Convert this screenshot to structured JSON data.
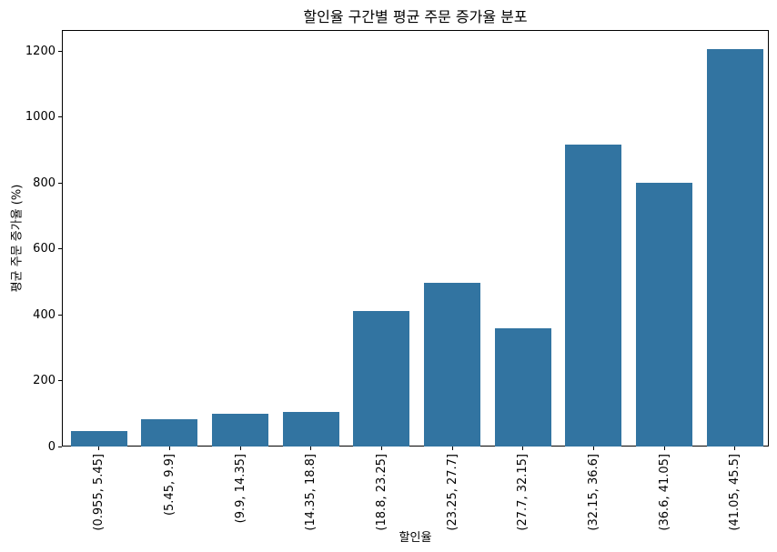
{
  "chart_data": {
    "type": "bar",
    "title": "할인율 구간별 평균 주문 증가율 분포",
    "xlabel": "할인율",
    "ylabel": "평균 주문 증가율 (%)",
    "categories": [
      "(0.955, 5.45]",
      "(5.45, 9.9]",
      "(9.9, 14.35]",
      "(14.35, 18.8]",
      "(18.8, 23.25]",
      "(23.25, 27.7]",
      "(27.7, 32.15]",
      "(32.15, 36.6]",
      "(36.6, 41.05]",
      "(41.05, 45.5]"
    ],
    "values": [
      48,
      83,
      99,
      106,
      413,
      496,
      358,
      916,
      800,
      1208
    ],
    "yticks": [
      0,
      200,
      400,
      600,
      800,
      1000,
      1200
    ],
    "ylim": [
      0,
      1265
    ],
    "grid": false,
    "legend": null,
    "colors": {
      "bar": "#3274a1",
      "spine": "#000000",
      "text": "#000000",
      "background": "#ffffff"
    }
  }
}
